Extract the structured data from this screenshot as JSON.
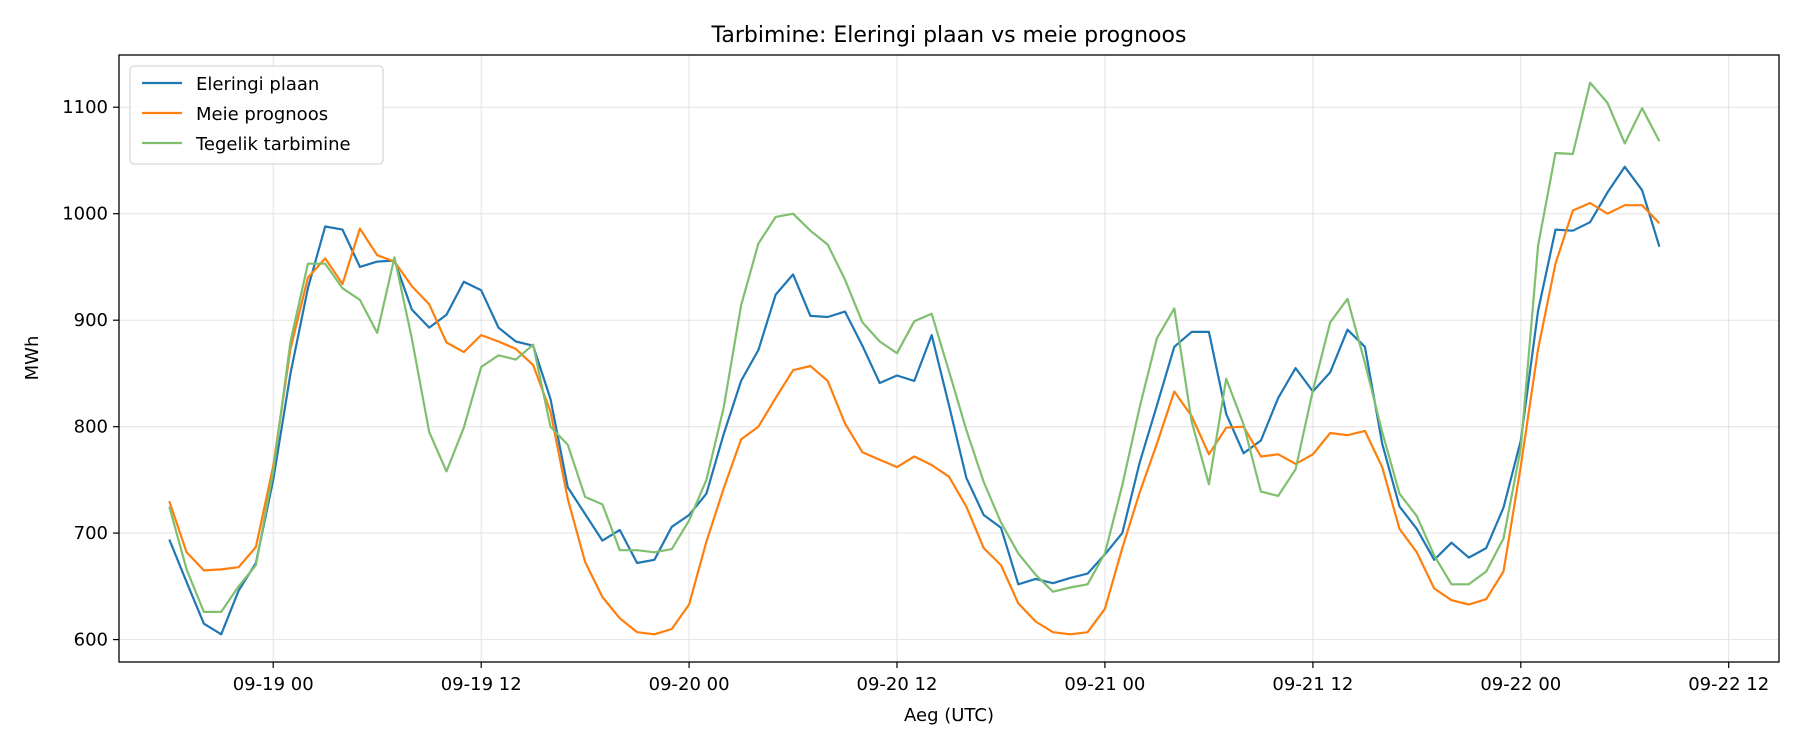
{
  "chart_data": {
    "type": "line",
    "title": "Tarbimine: Eleringi plaan vs meie prognoos",
    "xlabel": "Aeg (UTC)",
    "ylabel": "MWh",
    "x_start": "2025-09-18T18:00",
    "x_step_hours": 1,
    "xlim": [
      "2025-09-18T15:06",
      "2025-09-22T14:54"
    ],
    "ylim": [
      579,
      1149
    ],
    "x_ticks": [
      {
        "at": "2025-09-19T00:00",
        "label": "09-19 00"
      },
      {
        "at": "2025-09-19T12:00",
        "label": "09-19 12"
      },
      {
        "at": "2025-09-20T00:00",
        "label": "09-20 00"
      },
      {
        "at": "2025-09-20T12:00",
        "label": "09-20 12"
      },
      {
        "at": "2025-09-21T00:00",
        "label": "09-21 00"
      },
      {
        "at": "2025-09-21T12:00",
        "label": "09-21 12"
      },
      {
        "at": "2025-09-22T00:00",
        "label": "09-22 00"
      },
      {
        "at": "2025-09-22T12:00",
        "label": "09-22 12"
      }
    ],
    "y_ticks": [
      600,
      700,
      800,
      900,
      1000,
      1100
    ],
    "grid": true,
    "legend_position": "top-left",
    "series": [
      {
        "name": "Eleringi plaan",
        "color": "#1f77b4",
        "values": [
          694,
          654,
          615,
          605,
          646,
          672,
          750,
          850,
          930,
          988,
          985,
          950,
          955,
          956,
          910,
          893,
          905,
          936,
          928,
          893,
          880,
          876,
          826,
          743,
          718,
          693,
          703,
          672,
          675,
          706,
          717,
          737,
          793,
          843,
          872,
          924,
          943,
          904,
          903,
          908,
          876,
          841,
          848,
          843,
          886,
          820,
          752,
          717,
          705,
          652,
          657,
          653,
          658,
          662,
          680,
          700,
          766,
          820,
          875,
          889,
          889,
          812,
          775,
          787,
          827,
          855,
          833,
          851,
          891,
          875,
          784,
          725,
          704,
          675,
          691,
          677,
          686,
          724,
          787,
          909,
          985,
          984,
          992,
          1020,
          1044,
          1022,
          969
        ]
      },
      {
        "name": "Meie prognoos",
        "color": "#ff7f0e",
        "values": [
          730,
          682,
          665,
          666,
          668,
          687,
          763,
          873,
          940,
          958,
          934,
          986,
          961,
          955,
          932,
          915,
          879,
          870,
          886,
          880,
          873,
          858,
          814,
          732,
          673,
          640,
          620,
          607,
          605,
          610,
          633,
          692,
          742,
          788,
          800,
          827,
          853,
          857,
          843,
          803,
          776,
          769,
          762,
          772,
          764,
          753,
          725,
          686,
          670,
          634,
          617,
          607,
          605,
          607,
          629,
          686,
          738,
          784,
          833,
          810,
          774,
          799,
          800,
          772,
          774,
          765,
          774,
          794,
          792,
          796,
          762,
          704,
          682,
          648,
          637,
          633,
          638,
          664,
          763,
          873,
          953,
          1003,
          1010,
          1000,
          1008,
          1008,
          991
        ]
      },
      {
        "name": "Tegelik tarbimine",
        "color": "#7fbf6f",
        "values": [
          725,
          666,
          626,
          626,
          650,
          670,
          758,
          880,
          953,
          953,
          930,
          919,
          888,
          959,
          883,
          795,
          758,
          799,
          856,
          867,
          863,
          877,
          800,
          783,
          734,
          727,
          684,
          684,
          682,
          685,
          712,
          750,
          818,
          914,
          972,
          997,
          1000,
          984,
          971,
          938,
          898,
          880,
          869,
          899,
          906,
          852,
          797,
          748,
          710,
          681,
          661,
          645,
          649,
          652,
          681,
          745,
          818,
          883,
          911,
          805,
          746,
          845,
          802,
          739,
          735,
          760,
          834,
          898,
          920,
          860,
          795,
          737,
          716,
          679,
          652,
          652,
          664,
          695,
          780,
          970,
          1057,
          1056,
          1123,
          1104,
          1066,
          1099,
          1068
        ]
      }
    ]
  }
}
